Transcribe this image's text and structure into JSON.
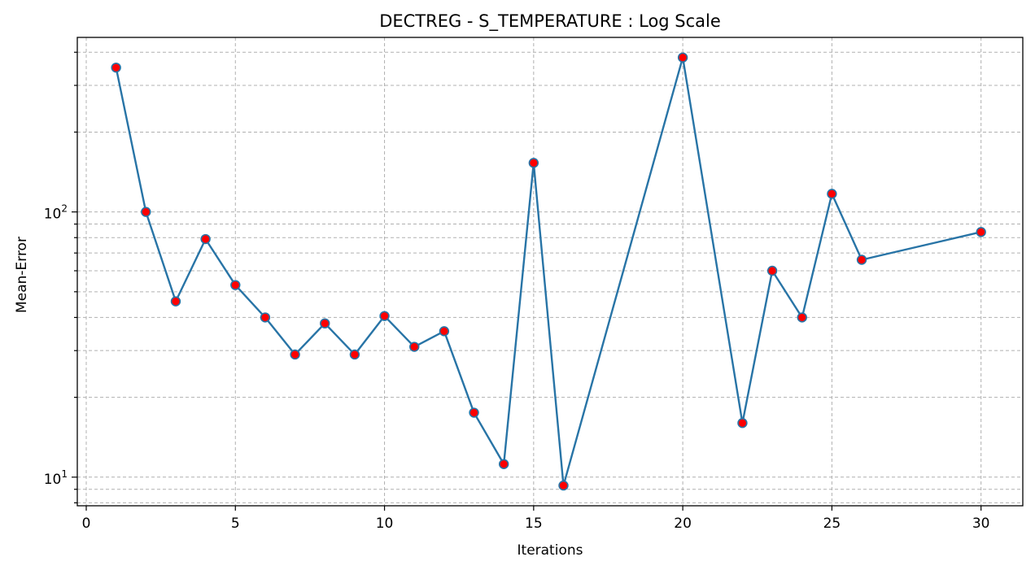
{
  "chart_data": {
    "type": "line",
    "title": "DECTREG - S_TEMPERATURE : Log Scale",
    "xlabel": "Iterations",
    "ylabel": "Mean-Error",
    "yscale": "log",
    "grid": true,
    "xlim": [
      -0.3,
      31.4
    ],
    "ylim": [
      7.8,
      455
    ],
    "xticks": [
      0,
      5,
      10,
      15,
      20,
      25,
      30
    ],
    "yticks_major": [
      {
        "value": 10,
        "base": "10",
        "exp": "1"
      },
      {
        "value": 100,
        "base": "10",
        "exp": "2"
      }
    ],
    "yticks_minor": [
      8,
      9,
      20,
      30,
      40,
      50,
      60,
      70,
      80,
      90,
      200,
      300,
      400
    ],
    "x": [
      1,
      2,
      3,
      4,
      5,
      6,
      7,
      8,
      9,
      10,
      11,
      12,
      13,
      14,
      15,
      16,
      20,
      22,
      23,
      24,
      25,
      26,
      30
    ],
    "series": [
      {
        "values": [
          350,
          100,
          46,
          79,
          53,
          40,
          29,
          38,
          29,
          40.5,
          31,
          35.5,
          17.5,
          11.2,
          153,
          9.3,
          382,
          16,
          60,
          40,
          117,
          66,
          84
        ]
      }
    ],
    "line_color": "#2874a6",
    "marker_color": "#ff0000",
    "marker_edge_color": "#2874a6"
  }
}
